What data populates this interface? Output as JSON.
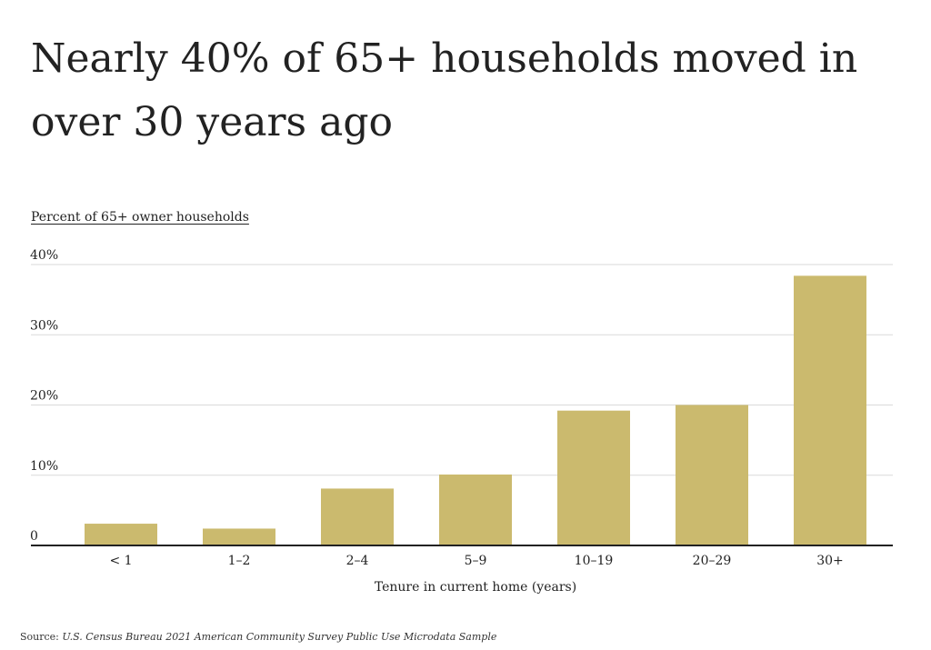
{
  "title": "Nearly 40% of 65+ households moved in over 30 years ago",
  "colors": {
    "bar": "#cbba6e",
    "grid": "#d9d9d9",
    "axis": "#222222",
    "text": "#222222"
  },
  "source": {
    "label": "Source:",
    "text": "U.S. Census Bureau 2021 American Community Survey Public Use Microdata Sample"
  },
  "chart_data": {
    "type": "bar",
    "title": "Nearly 40% of 65+ households moved in over 30 years ago",
    "ylabel": "Percent of 65+ owner households",
    "xlabel": "Tenure in current home (years)",
    "categories": [
      "< 1",
      "1–2",
      "2–4",
      "5–9",
      "10–19",
      "20–29",
      "30+"
    ],
    "values": [
      3.1,
      2.4,
      8.1,
      10.1,
      19.2,
      20.0,
      38.4
    ],
    "ylim": [
      0,
      40
    ],
    "yticks": [
      0,
      10,
      20,
      30,
      40
    ],
    "ytick_labels": [
      "0",
      "10%",
      "20%",
      "30%",
      "40%"
    ],
    "grid": true,
    "legend": "none"
  }
}
